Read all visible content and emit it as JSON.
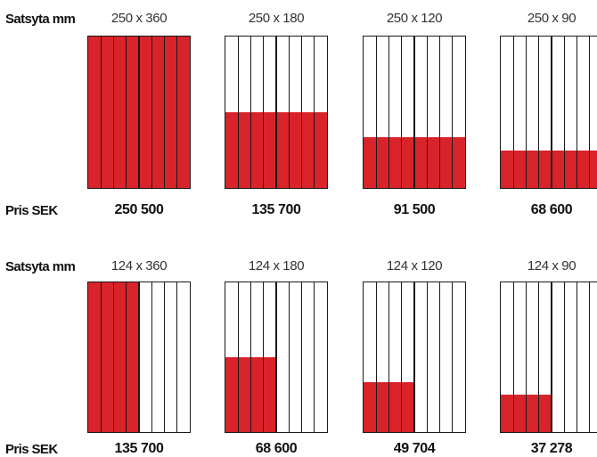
{
  "colors": {
    "accent": "#d8232a",
    "line": "#1a1a1a"
  },
  "rows": [
    {
      "label": "Satsyta mm",
      "price_label": "Pris SEK",
      "items": [
        {
          "size": "250 x 360",
          "price": "250 500",
          "columns_filled": 8,
          "height_fraction": 1.0
        },
        {
          "size": "250 x 180",
          "price": "135 700",
          "columns_filled": 8,
          "height_fraction": 0.5
        },
        {
          "size": "250 x 120",
          "price": "91 500",
          "columns_filled": 8,
          "height_fraction": 0.333
        },
        {
          "size": "250 x 90",
          "price": "68 600",
          "columns_filled": 8,
          "height_fraction": 0.25
        }
      ]
    },
    {
      "label": "Satsyta mm",
      "price_label": "Pris SEK",
      "items": [
        {
          "size": "124 x 360",
          "price": "135 700",
          "columns_filled": 4,
          "height_fraction": 1.0
        },
        {
          "size": "124 x 180",
          "price": "68 600",
          "columns_filled": 4,
          "height_fraction": 0.5
        },
        {
          "size": "124 x 120",
          "price": "49 704",
          "columns_filled": 4,
          "height_fraction": 0.333
        },
        {
          "size": "124 x 90",
          "price": "37 278",
          "columns_filled": 4,
          "height_fraction": 0.25
        }
      ]
    }
  ]
}
